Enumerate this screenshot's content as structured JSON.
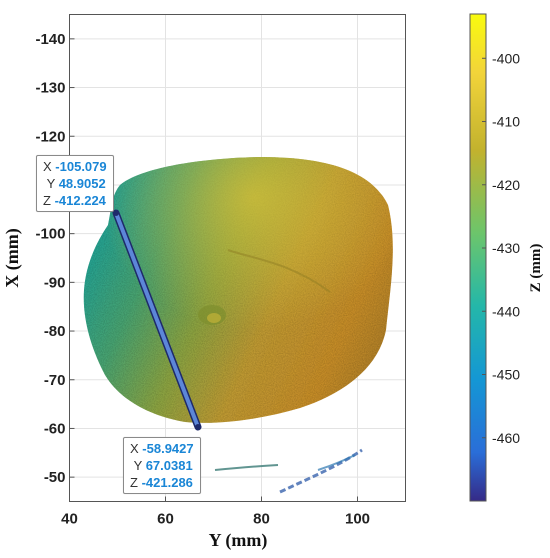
{
  "chart_data": {
    "type": "surface",
    "xlabel": "Y (mm)",
    "ylabel": "X (mm)",
    "colorbar_label": "Z (mm)",
    "xlim": [
      40,
      110
    ],
    "ylim": [
      -145,
      -45
    ],
    "y_axis_reversed": true,
    "grid": true,
    "colormap": "parula",
    "x_ticks": [
      40,
      60,
      80,
      100
    ],
    "y_ticks": [
      -140,
      -130,
      -120,
      -110,
      -100,
      -90,
      -80,
      -70,
      -60,
      -50
    ],
    "y_tick_labels": [
      "-140",
      "-130",
      "-120",
      "-110",
      "-100",
      "-90",
      "-80",
      "-70",
      "-60",
      "-50"
    ],
    "colorbar_range": [
      -470,
      -393
    ],
    "colorbar_ticks": [
      -400,
      -410,
      -420,
      -430,
      -440,
      -450,
      -460
    ],
    "colors": {
      "low": "#352a87",
      "mid_low": "#1ea9c0",
      "mid": "#6cc76a",
      "mid_high": "#d2b13a",
      "high": "#f9fb0e"
    },
    "measurement_line": {
      "start": {
        "x_label": "X",
        "x": "-105.079",
        "y_label": "Y",
        "y": "48.9052",
        "z_label": "Z",
        "z": "-412.224"
      },
      "end": {
        "x_label": "X",
        "x": "-58.9427",
        "y_label": "Y",
        "y": "67.0381",
        "z_label": "Z",
        "z": "-421.286"
      }
    }
  }
}
